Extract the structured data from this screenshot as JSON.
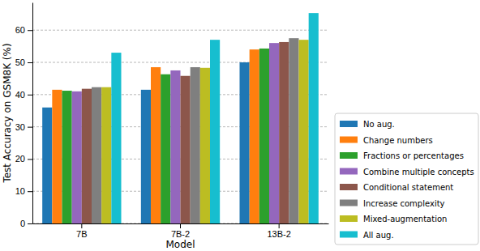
{
  "chart_data": {
    "type": "bar",
    "x_label": "Model",
    "y_label": "Test Accuracy on GSM8K (%)",
    "categories": [
      "7B",
      "7B-2",
      "13B-2"
    ],
    "series": [
      {
        "name": "No aug.",
        "color": "#1f77b4",
        "values": [
          36,
          41.5,
          50
        ]
      },
      {
        "name": "Change numbers",
        "color": "#ff7f0e",
        "values": [
          41.5,
          48.5,
          54
        ]
      },
      {
        "name": "Fractions or percentages",
        "color": "#2ca02c",
        "values": [
          41.2,
          46.3,
          54.3
        ]
      },
      {
        "name": "Combine multiple concepts",
        "color": "#9467bd",
        "values": [
          41,
          47.5,
          56
        ]
      },
      {
        "name": "Conditional statement",
        "color": "#8c564b",
        "values": [
          41.8,
          45.8,
          56.3
        ]
      },
      {
        "name": "Increase complexity",
        "color": "#7f7f7f",
        "values": [
          42.3,
          48.5,
          57.5
        ]
      },
      {
        "name": "Mixed-augmentation",
        "color": "#bcbd22",
        "values": [
          42.3,
          48.3,
          57
        ]
      },
      {
        "name": "All aug.",
        "color": "#17becf",
        "values": [
          53,
          57,
          65.3
        ]
      }
    ],
    "ylim": [
      0,
      68.6
    ],
    "yticks": [
      0,
      10,
      20,
      30,
      40,
      50,
      60
    ],
    "grid": true,
    "legend": "right"
  }
}
